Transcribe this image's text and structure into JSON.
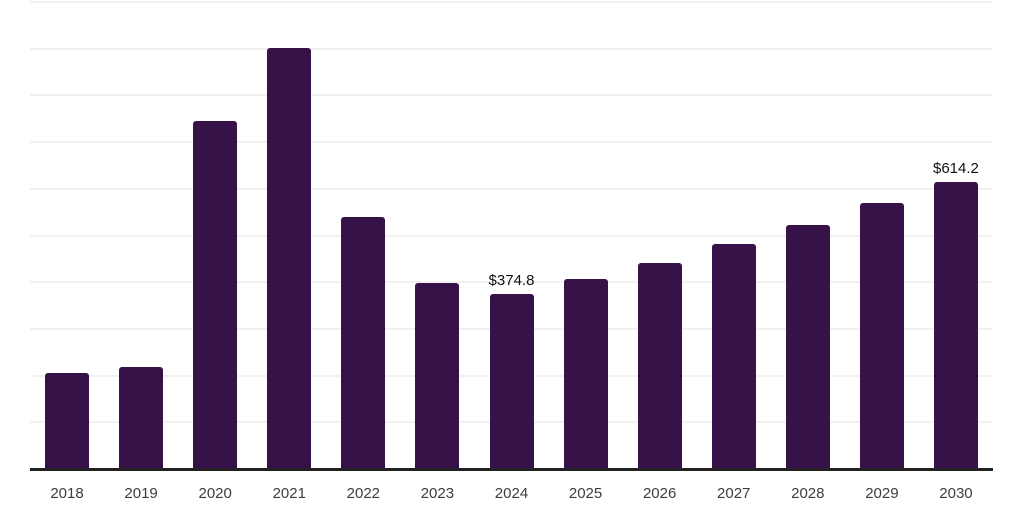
{
  "chart_data": {
    "type": "bar",
    "title": "",
    "xlabel": "",
    "ylabel": "",
    "categories": [
      "2018",
      "2019",
      "2020",
      "2021",
      "2022",
      "2023",
      "2024",
      "2025",
      "2026",
      "2027",
      "2028",
      "2029",
      "2030"
    ],
    "values": [
      205,
      218,
      746,
      902,
      539,
      398,
      374.8,
      406,
      442,
      481,
      522,
      569,
      614.2
    ],
    "value_labels": [
      {
        "category": "2024",
        "text": "$374.8"
      },
      {
        "category": "2030",
        "text": "$614.2"
      }
    ],
    "ylim": [
      0,
      1000
    ],
    "gridline_step": 100,
    "grid": "horizontal",
    "legend": "none",
    "y_axis_labels": "none",
    "colors": {
      "bar": "#371249",
      "axis_line": "#222222",
      "gridline": "#f1f1f1",
      "tick_label": "#3d3d3d",
      "value_label": "#111111",
      "background": "#ffffff"
    }
  }
}
